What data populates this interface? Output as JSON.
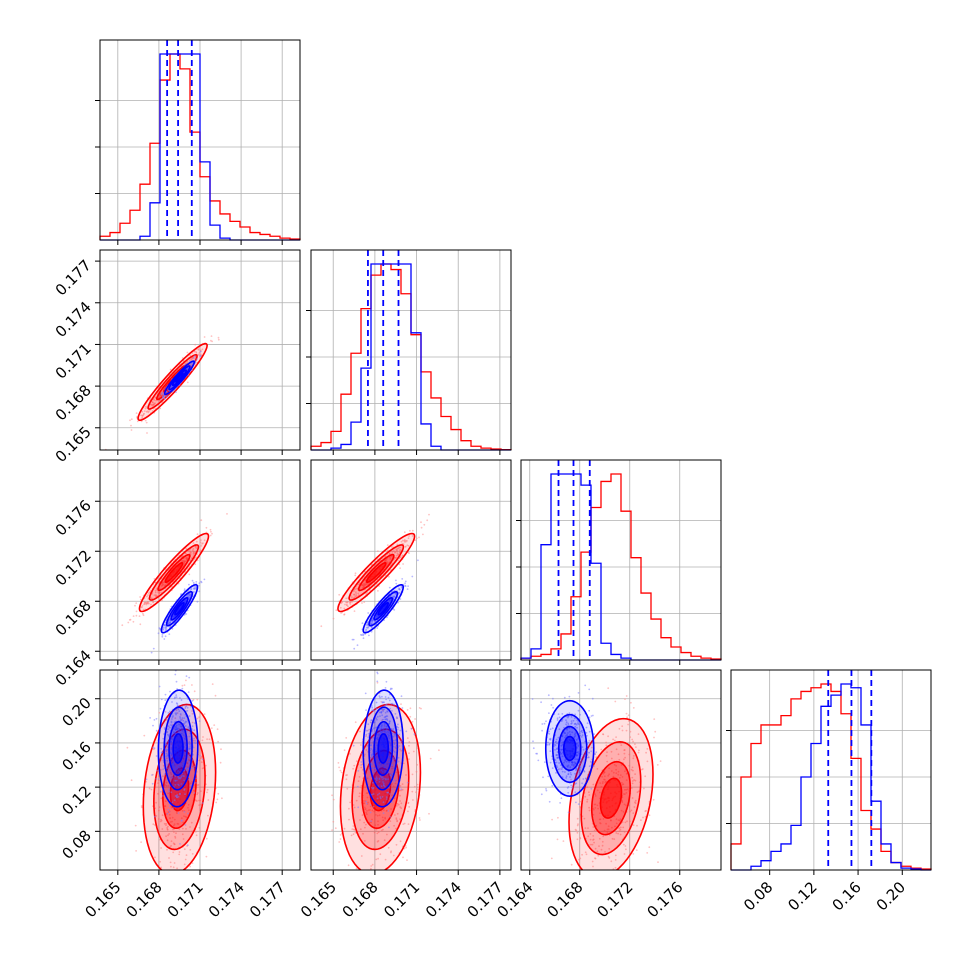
{
  "chart_data": {
    "type": "corner",
    "title": "",
    "colors": {
      "series_a": "#ff0000",
      "series_b": "#0000ff",
      "grid": "#b0b0b0",
      "axes": "#000000"
    },
    "grid": true,
    "series": [
      {
        "name": "",
        "color": "#ff0000"
      },
      {
        "name": "",
        "color": "#0000ff"
      }
    ],
    "parameters": [
      {
        "index": 1,
        "xlim": [
          0.1637,
          0.1783
        ],
        "ticks": [
          0.165,
          0.168,
          0.171,
          0.174,
          0.177
        ],
        "tick_labels": [
          "0.165",
          "0.168",
          "0.171",
          "0.174",
          "0.177"
        ],
        "quantiles_blue": [
          0.1686,
          0.1694,
          0.1704
        ],
        "hist_red": [
          0.02,
          0.04,
          0.09,
          0.16,
          0.3,
          0.52,
          0.86,
          1.0,
          0.92,
          0.58,
          0.34,
          0.21,
          0.14,
          0.1,
          0.07,
          0.04,
          0.03,
          0.02,
          0.01,
          0.005
        ],
        "hist_blue": [
          0,
          0,
          0,
          0,
          0.02,
          0.2,
          1.0,
          1.0,
          1.0,
          1.0,
          0.42,
          0.08,
          0.01,
          0,
          0,
          0,
          0,
          0,
          0,
          0
        ]
      },
      {
        "index": 2,
        "xlim": [
          0.1634,
          0.1778
        ],
        "ticks": [
          0.165,
          0.168,
          0.171,
          0.174,
          0.177
        ],
        "tick_labels": [
          "0.165",
          "0.168",
          "0.171",
          "0.174",
          "0.177"
        ],
        "quantiles_blue": [
          0.1675,
          0.1686,
          0.1697
        ],
        "hist_red": [
          0.02,
          0.04,
          0.1,
          0.3,
          0.52,
          0.76,
          0.94,
          1.0,
          0.97,
          0.84,
          0.62,
          0.42,
          0.28,
          0.18,
          0.11,
          0.05,
          0.02,
          0.01,
          0.005,
          0.002
        ],
        "hist_blue": [
          0,
          0,
          0.01,
          0.03,
          0.15,
          0.44,
          1.0,
          1.0,
          1.0,
          1.0,
          0.63,
          0.14,
          0.02,
          0,
          0,
          0,
          0,
          0,
          0,
          0
        ]
      },
      {
        "index": 3,
        "xlim": [
          0.1633,
          0.1793
        ],
        "ticks": [
          0.164,
          0.168,
          0.172,
          0.176
        ],
        "tick_labels": [
          "0.164",
          "0.168",
          "0.172",
          "0.176"
        ],
        "quantiles_blue": [
          0.1663,
          0.1675,
          0.1688
        ],
        "hist_red": [
          0.01,
          0.02,
          0.03,
          0.06,
          0.14,
          0.34,
          0.58,
          0.82,
          0.96,
          1.0,
          0.8,
          0.55,
          0.36,
          0.22,
          0.12,
          0.07,
          0.04,
          0.02,
          0.01,
          0.005
        ],
        "hist_blue": [
          0.01,
          0.06,
          0.62,
          1.0,
          1.0,
          1.0,
          0.94,
          0.52,
          0.09,
          0.03,
          0.01,
          0,
          0,
          0,
          0,
          0,
          0,
          0,
          0,
          0
        ]
      },
      {
        "index": 4,
        "xlim": [
          0.045,
          0.226
        ],
        "ticks": [
          0.08,
          0.12,
          0.16,
          0.2
        ],
        "tick_labels": [
          "0.08",
          "0.12",
          "0.16",
          "0.20"
        ],
        "quantiles_blue": [
          0.133,
          0.154,
          0.172
        ],
        "hist_red": [
          0.14,
          0.5,
          0.68,
          0.78,
          0.78,
          0.83,
          0.92,
          0.96,
          0.98,
          1.0,
          0.96,
          0.84,
          0.6,
          0.32,
          0.22,
          0.1,
          0.04,
          0.02,
          0.01,
          0.005
        ],
        "hist_blue": [
          0,
          0,
          0.02,
          0.05,
          0.1,
          0.14,
          0.24,
          0.5,
          0.68,
          0.88,
          0.94,
          1.0,
          0.98,
          0.78,
          0.37,
          0.14,
          0.04,
          0.01,
          0.005,
          0
        ]
      }
    ],
    "pairs": [
      {
        "row": 2,
        "col": 1,
        "red": {
          "mean": [
            0.169,
            0.1683
          ],
          "sd": [
            0.00105,
            0.00115
          ],
          "rho": 0.95
        },
        "blue": {
          "mean": [
            0.1695,
            0.1686
          ],
          "sd": [
            0.00045,
            0.0005
          ],
          "rho": 0.94
        }
      },
      {
        "row": 3,
        "col": 1,
        "red": {
          "mean": [
            0.1691,
            0.1703
          ],
          "sd": [
            0.00105,
            0.0013
          ],
          "rho": 0.93
        },
        "blue": {
          "mean": [
            0.1695,
            0.1674
          ],
          "sd": [
            0.00055,
            0.0008
          ],
          "rho": 0.9
        }
      },
      {
        "row": 3,
        "col": 2,
        "red": {
          "mean": [
            0.1681,
            0.1703
          ],
          "sd": [
            0.00115,
            0.0013
          ],
          "rho": 0.93
        },
        "blue": {
          "mean": [
            0.1686,
            0.1674
          ],
          "sd": [
            0.0006,
            0.0008
          ],
          "rho": 0.9
        }
      },
      {
        "row": 4,
        "col": 1,
        "red": {
          "mean": [
            0.1695,
            0.118
          ],
          "sd": [
            0.0011,
            0.032
          ],
          "rho": 0.2
        },
        "blue": {
          "mean": [
            0.1694,
            0.155
          ],
          "sd": [
            0.0006,
            0.022
          ],
          "rho": 0.05
        }
      },
      {
        "row": 4,
        "col": 2,
        "red": {
          "mean": [
            0.1684,
            0.118
          ],
          "sd": [
            0.0012,
            0.032
          ],
          "rho": 0.2
        },
        "blue": {
          "mean": [
            0.1686,
            0.155
          ],
          "sd": [
            0.0006,
            0.022
          ],
          "rho": 0.05
        }
      },
      {
        "row": 4,
        "col": 3,
        "red": {
          "mean": [
            0.1705,
            0.11
          ],
          "sd": [
            0.0014,
            0.03
          ],
          "rho": 0.3
        },
        "blue": {
          "mean": [
            0.1672,
            0.155
          ],
          "sd": [
            0.0008,
            0.018
          ],
          "rho": 0.0
        }
      }
    ]
  }
}
